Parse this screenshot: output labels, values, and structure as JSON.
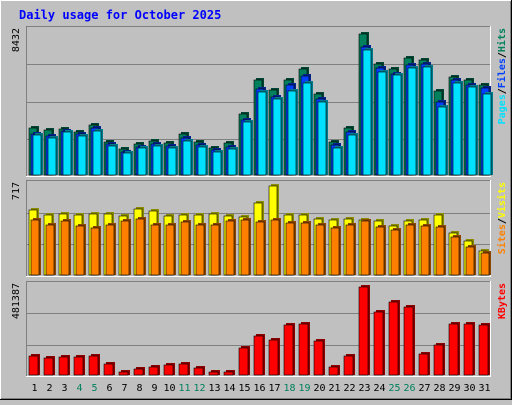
{
  "colors": {
    "background": "#c0c0c0",
    "hits": "#00805c",
    "files": "#0040ff",
    "pages": "#00e0ff",
    "visits": "#ffff00",
    "sites": "#ff8000",
    "kbytes": "#ff0000",
    "title": "#0000ff",
    "weekend_label": "#00805c",
    "separator": "#000000"
  },
  "chart_data": {
    "type": "bar",
    "title": "Daily usage for October 2025",
    "categories": [
      "1",
      "2",
      "3",
      "4",
      "5",
      "6",
      "7",
      "8",
      "9",
      "10",
      "11",
      "12",
      "13",
      "14",
      "15",
      "16",
      "17",
      "18",
      "19",
      "20",
      "21",
      "22",
      "23",
      "24",
      "25",
      "26",
      "27",
      "28",
      "29",
      "30",
      "31"
    ],
    "weekend_days": [
      "4",
      "5",
      "11",
      "12",
      "18",
      "19",
      "25",
      "26"
    ],
    "panels": [
      {
        "max_label": "8432",
        "legend": [
          "Pages",
          "Files",
          "Hits"
        ],
        "separator": "/",
        "ylim": [
          0,
          8432
        ],
        "series": [
          {
            "name": "Hits",
            "color_key": "hits",
            "values": [
              2780,
              2650,
              2740,
              2550,
              2940,
              1940,
              1520,
              1830,
              1990,
              1890,
              2420,
              1930,
              1620,
              1880,
              3580,
              5600,
              5000,
              5600,
              6230,
              4780,
              1920,
              2770,
              8300,
              6560,
              6240,
              6890,
              6790,
              4950,
              5780,
              5590,
              5300
            ]
          },
          {
            "name": "Files",
            "color_key": "files",
            "values": [
              2430,
              2310,
              2590,
              2430,
              2780,
              1800,
              1380,
              1680,
              1830,
              1700,
              2160,
              1780,
              1470,
              1680,
              3250,
              5050,
              4610,
              5300,
              5830,
              4500,
              1790,
              2560,
              7570,
              6300,
              5960,
              6500,
              6520,
              4300,
              5620,
              5290,
              5150
            ]
          },
          {
            "name": "Pages",
            "color_key": "pages",
            "values": [
              2380,
              2190,
              2520,
              2300,
              2600,
              1730,
              1290,
              1600,
              1690,
              1620,
              1990,
              1680,
              1370,
              1510,
              3100,
              4900,
              4510,
              4960,
              5400,
              4320,
              1610,
              2350,
              7350,
              6100,
              5890,
              6300,
              6360,
              3990,
              5440,
              5180,
              4800
            ]
          }
        ]
      },
      {
        "max_label": "717",
        "legend": [
          "Sites",
          "Visits"
        ],
        "separator": "/",
        "ylim": [
          0,
          717
        ],
        "series": [
          {
            "name": "Visits",
            "color_key": "visits",
            "values": [
              525,
              485,
              495,
              485,
              495,
              495,
              475,
              535,
              515,
              475,
              485,
              485,
              495,
              475,
              465,
              577,
              717,
              485,
              485,
              455,
              445,
              455,
              445,
              435,
              395,
              435,
              445,
              485,
              335,
              275,
              195
            ]
          },
          {
            "name": "Sites",
            "color_key": "sites",
            "values": [
              445,
              405,
              435,
              395,
              375,
              405,
              435,
              455,
              405,
              405,
              425,
              405,
              405,
              435,
              445,
              425,
              445,
              415,
              415,
              405,
              375,
              405,
              435,
              385,
              365,
              405,
              395,
              385,
              305,
              225,
              175
            ]
          }
        ]
      },
      {
        "max_label": "481387",
        "legend": [
          "KBytes"
        ],
        "separator": "",
        "ylim": [
          0,
          481387
        ],
        "series": [
          {
            "name": "KBytes",
            "color_key": "kbytes",
            "values": [
              104000,
              95000,
              96000,
              98000,
              102000,
              60000,
              16000,
              32000,
              44000,
              52000,
              60000,
              38000,
              14000,
              16000,
              150000,
              214000,
              193000,
              272000,
              278000,
              186000,
              42000,
              103000,
              481387,
              347000,
              399000,
              370000,
              113000,
              165000,
              281000,
              281000,
              275000
            ]
          }
        ]
      }
    ]
  }
}
